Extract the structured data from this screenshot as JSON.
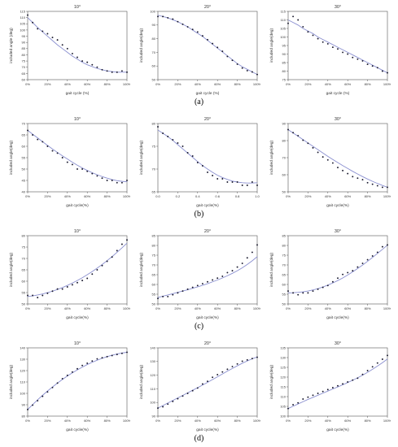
{
  "row_labels": [
    "(a)",
    "(b)",
    "(c)",
    "(d)"
  ],
  "colors": {
    "points": "#1a1a2e",
    "fit": "#8a8fd0",
    "axis": "#555555"
  },
  "chart_data": [
    {
      "type": "scatter",
      "title": "10°",
      "xlabel": "gait cycle  (%)",
      "ylabel": "included  angle  (deg)",
      "xticks": [
        "0%",
        "20%",
        "40%",
        "60%",
        "80%",
        "100%"
      ],
      "yticks": [
        "60",
        "65",
        "70",
        "75",
        "80",
        "85",
        "90",
        "95",
        "100",
        "105",
        "110",
        "115"
      ],
      "xlim": [
        0,
        100
      ],
      "ylim": [
        60,
        115
      ],
      "x": [
        0,
        5,
        10,
        15,
        20,
        25,
        30,
        35,
        40,
        45,
        50,
        55,
        60,
        65,
        70,
        75,
        80,
        85,
        90,
        95,
        100
      ],
      "values": [
        112,
        106,
        101,
        99,
        97,
        94,
        92,
        88,
        85,
        81,
        78,
        75,
        74,
        72,
        70,
        68,
        67,
        66,
        66,
        67,
        66
      ],
      "fit": [
        110,
        106,
        102,
        98.5,
        95,
        91.5,
        88,
        85,
        82,
        79,
        76.5,
        74,
        72,
        70.5,
        69,
        68,
        67,
        66.5,
        66,
        66,
        66
      ]
    },
    {
      "type": "scatter",
      "title": "20°",
      "xlabel": "gait cycle (%)",
      "ylabel": "included angle(deg)",
      "xticks": [
        "0%",
        "20%",
        "40%",
        "60%",
        "80%",
        "100%"
      ],
      "yticks": [
        "50",
        "60",
        "70",
        "80",
        "90",
        "100"
      ],
      "xlim": [
        0,
        100
      ],
      "ylim": [
        50,
        103
      ],
      "x": [
        0,
        5,
        10,
        15,
        20,
        25,
        30,
        35,
        40,
        45,
        50,
        55,
        60,
        65,
        70,
        75,
        80,
        85,
        90,
        95,
        100
      ],
      "values": [
        99,
        99,
        98,
        97,
        95,
        93,
        91,
        89,
        87,
        84,
        81,
        78,
        75,
        72,
        68,
        65,
        62,
        59,
        57,
        56,
        54
      ],
      "fit": [
        100,
        99,
        98,
        96.5,
        95,
        93,
        91,
        88.5,
        86,
        83.5,
        80.5,
        77.5,
        74.5,
        71.5,
        68.5,
        65.5,
        62.5,
        60,
        58,
        56,
        54
      ]
    },
    {
      "type": "scatter",
      "title": "30°",
      "xlabel": "gait cycle (%)",
      "ylabel": "included angle(deg)",
      "xticks": [
        "0%",
        "20%",
        "40%",
        "60%",
        "80%",
        "100%"
      ],
      "yticks": [
        "75",
        "80",
        "85",
        "90",
        "95",
        "100",
        "105",
        "110",
        "115"
      ],
      "xlim": [
        0,
        100
      ],
      "ylim": [
        75,
        115
      ],
      "x": [
        0,
        5,
        10,
        15,
        20,
        25,
        30,
        35,
        40,
        45,
        50,
        55,
        60,
        65,
        70,
        75,
        80,
        85,
        90,
        95,
        100
      ],
      "values": [
        108,
        112,
        110,
        106,
        103,
        101,
        99,
        97,
        96,
        94,
        93,
        91,
        90,
        88,
        87,
        86,
        84,
        83,
        82,
        80,
        79
      ],
      "fit": [
        110,
        108.5,
        107,
        105,
        103.5,
        102,
        100,
        98.5,
        97,
        95.5,
        94,
        92.5,
        91,
        89.5,
        88,
        86.5,
        85,
        83.5,
        82,
        80.5,
        79
      ]
    },
    {
      "type": "scatter",
      "title": "10°",
      "xlabel": "gait cycle(%)",
      "ylabel": "included angle(deg)",
      "xticks": [
        "0%",
        "20%",
        "40%",
        "60%",
        "80%",
        "100%"
      ],
      "yticks": [
        "40",
        "45",
        "50",
        "55",
        "60",
        "65",
        "70"
      ],
      "xlim": [
        0,
        100
      ],
      "ylim": [
        40,
        70
      ],
      "x": [
        0,
        5,
        10,
        15,
        20,
        25,
        30,
        35,
        40,
        45,
        50,
        55,
        60,
        65,
        70,
        75,
        80,
        85,
        90,
        95,
        100
      ],
      "values": [
        67,
        65,
        63,
        62,
        60,
        58,
        57,
        55,
        53,
        52,
        50,
        50,
        49,
        48,
        47,
        46,
        45,
        45,
        44,
        44,
        45
      ],
      "fit": [
        67,
        65.3,
        63.7,
        62,
        60.4,
        58.8,
        57.3,
        55.8,
        54.4,
        53,
        51.7,
        50.5,
        49.4,
        48.4,
        47.5,
        46.7,
        46,
        45.4,
        44.9,
        44.6,
        44.4
      ]
    },
    {
      "type": "scatter",
      "title": "20°",
      "xlabel": "gait cycle(%)",
      "ylabel": "included angle(deg)",
      "xticks": [
        "0.0",
        "0.2",
        "0.4",
        "0.6",
        "0.8",
        "1.0"
      ],
      "yticks": [
        "65",
        "70",
        "75",
        "80"
      ],
      "xlim": [
        0,
        1
      ],
      "ylim": [
        61,
        82
      ],
      "x": [
        0,
        0.05,
        0.1,
        0.15,
        0.2,
        0.25,
        0.3,
        0.35,
        0.4,
        0.45,
        0.5,
        0.55,
        0.6,
        0.65,
        0.7,
        0.75,
        0.8,
        0.85,
        0.9,
        0.95,
        1.0
      ],
      "values": [
        81,
        79,
        78,
        77,
        76,
        75,
        73,
        72,
        70,
        69,
        67,
        66,
        65,
        65,
        64,
        64,
        64,
        63,
        63,
        64,
        63
      ],
      "fit": [
        80,
        79,
        78,
        76.8,
        75.5,
        74.2,
        72.9,
        71.6,
        70.3,
        69.1,
        68,
        67,
        66.1,
        65.4,
        64.8,
        64.3,
        64,
        63.8,
        63.7,
        63.7,
        63.8
      ]
    },
    {
      "type": "scatter",
      "title": "30°",
      "xlabel": "gait cycle(%)",
      "ylabel": "included angle(deg)",
      "xticks": [
        "0%",
        "20%",
        "40%",
        "60%",
        "80%",
        "100%"
      ],
      "yticks": [
        "50",
        "60",
        "70",
        "80",
        "90"
      ],
      "xlim": [
        0,
        100
      ],
      "ylim": [
        47,
        92
      ],
      "x": [
        0,
        5,
        10,
        15,
        20,
        25,
        30,
        35,
        40,
        45,
        50,
        55,
        60,
        65,
        70,
        75,
        80,
        85,
        90,
        95,
        100
      ],
      "values": [
        88,
        86,
        84,
        81,
        79,
        76,
        73,
        70,
        68,
        66,
        63,
        61,
        59,
        57,
        56,
        55,
        53,
        52,
        51,
        50,
        50
      ],
      "fit": [
        88,
        85.8,
        83.6,
        81.4,
        79.2,
        77,
        74.8,
        72.6,
        70.4,
        68.3,
        66.3,
        64.3,
        62.4,
        60.5,
        58.7,
        57,
        55.4,
        53.9,
        52.5,
        51.2,
        50
      ]
    },
    {
      "type": "scatter",
      "title": "10°",
      "xlabel": "gait cycle(%)",
      "ylabel": "included angle(deg)",
      "xticks": [
        "0%",
        "20%",
        "40%",
        "60%",
        "80%",
        "100%"
      ],
      "yticks": [
        "50",
        "55",
        "60",
        "65",
        "70",
        "75",
        "80"
      ],
      "xlim": [
        0,
        100
      ],
      "ylim": [
        49,
        81
      ],
      "x": [
        0,
        5,
        10,
        15,
        20,
        25,
        30,
        35,
        40,
        45,
        50,
        55,
        60,
        65,
        70,
        75,
        80,
        85,
        90,
        95,
        100
      ],
      "values": [
        53,
        53,
        52,
        53,
        54,
        55,
        56,
        56,
        57,
        58,
        59,
        60,
        61,
        63,
        65,
        67,
        69,
        71,
        74,
        77,
        79
      ],
      "fit": [
        52.5,
        52.8,
        53.2,
        53.7,
        54.3,
        55,
        55.8,
        56.7,
        57.7,
        58.8,
        60,
        61.3,
        62.7,
        64.2,
        65.8,
        67.5,
        69.3,
        71.2,
        73.2,
        75.3,
        77.5
      ]
    },
    {
      "type": "scatter",
      "title": "20°",
      "xlabel": "gait cycle(%)",
      "ylabel": "included angle(deg)",
      "xticks": [
        "0%",
        "20%",
        "40%",
        "60%",
        "80%",
        "100%"
      ],
      "yticks": [
        "50",
        "55",
        "60",
        "65",
        "70",
        "75",
        "80",
        "85"
      ],
      "xlim": [
        0,
        100
      ],
      "ylim": [
        49,
        86
      ],
      "x": [
        0,
        5,
        10,
        15,
        20,
        25,
        30,
        35,
        40,
        45,
        50,
        55,
        60,
        65,
        70,
        75,
        80,
        85,
        90,
        95,
        100
      ],
      "values": [
        52,
        53,
        53,
        54,
        55,
        56,
        57,
        58,
        59,
        60,
        61,
        62,
        63,
        64,
        66,
        67,
        69,
        71,
        74,
        77,
        81
      ],
      "fit": [
        52.5,
        53.2,
        53.9,
        54.6,
        55.3,
        56,
        56.7,
        57.5,
        58.3,
        59.1,
        60,
        61,
        62,
        63.1,
        64.3,
        65.6,
        67,
        68.6,
        70.4,
        72.4,
        74.6
      ]
    },
    {
      "type": "scatter",
      "title": "30°",
      "xlabel": "gait cycle(%)",
      "ylabel": "included angle(deg)",
      "xticks": [
        "0%",
        "20%",
        "40%",
        "60%",
        "80%",
        "100%"
      ],
      "yticks": [
        "50",
        "55",
        "60",
        "65",
        "70",
        "75",
        "80",
        "85"
      ],
      "xlim": [
        0,
        100
      ],
      "ylim": [
        49,
        86
      ],
      "x": [
        0,
        5,
        10,
        15,
        20,
        25,
        30,
        35,
        40,
        45,
        50,
        55,
        60,
        65,
        70,
        75,
        80,
        85,
        90,
        95,
        100
      ],
      "values": [
        56,
        55,
        54,
        55,
        55,
        56,
        57,
        58,
        59,
        61,
        63,
        65,
        66,
        67,
        69,
        71,
        73,
        75,
        77,
        80,
        81
      ],
      "fit": [
        55,
        55.1,
        55.3,
        55.6,
        56,
        56.6,
        57.3,
        58.2,
        59.2,
        60.4,
        61.7,
        63.1,
        64.7,
        66.4,
        68.2,
        70.1,
        72.1,
        74.2,
        76.4,
        78.6,
        80.9
      ]
    },
    {
      "type": "scatter",
      "title": "10°",
      "xlabel": "gait cycle(%)",
      "ylabel": "included angle(deg)",
      "xticks": [
        "0%",
        "20%",
        "40%",
        "60%",
        "80%",
        "100%"
      ],
      "yticks": [
        "80",
        "90",
        "100",
        "110",
        "120",
        "130",
        "140"
      ],
      "xlim": [
        0,
        100
      ],
      "ylim": [
        80,
        142
      ],
      "x": [
        0,
        5,
        10,
        15,
        20,
        25,
        30,
        35,
        40,
        45,
        50,
        55,
        60,
        65,
        70,
        75,
        80,
        85,
        90,
        95,
        100
      ],
      "values": [
        86,
        90,
        94,
        98,
        102,
        106,
        110,
        114,
        117,
        120,
        123,
        126,
        128,
        130,
        132,
        133,
        134,
        135,
        136,
        137,
        138
      ],
      "fit": [
        86,
        90.5,
        94.8,
        98.9,
        102.8,
        106.5,
        110,
        113.3,
        116.4,
        119.3,
        122,
        124.5,
        126.8,
        128.9,
        130.8,
        132.5,
        134,
        135.3,
        136.4,
        137.3,
        138
      ]
    },
    {
      "type": "scatter",
      "title": "20°",
      "xlabel": "gait cycle(%)",
      "ylabel": "included angle(deg)",
      "xticks": [
        "0%",
        "20%",
        "40%",
        "60%",
        "80%",
        "100%"
      ],
      "yticks": [
        "90",
        "100",
        "110",
        "120",
        "130",
        "140"
      ],
      "xlim": [
        0,
        100
      ],
      "ylim": [
        90,
        141
      ],
      "x": [
        0,
        5,
        10,
        15,
        20,
        25,
        30,
        35,
        40,
        45,
        50,
        55,
        60,
        65,
        70,
        75,
        80,
        85,
        90,
        95,
        100
      ],
      "values": [
        96,
        97,
        99,
        101,
        103,
        105,
        107,
        109,
        111,
        114,
        116,
        119,
        121,
        123,
        125,
        127,
        129,
        131,
        132,
        133,
        134
      ],
      "fit": [
        96,
        97.9,
        99.8,
        101.7,
        103.6,
        105.5,
        107.4,
        109.3,
        111.2,
        113.2,
        115.2,
        117.3,
        119.4,
        121.5,
        123.6,
        125.6,
        127.6,
        129.5,
        131.2,
        132.8,
        134.2
      ]
    },
    {
      "type": "scatter",
      "title": "30°",
      "xlabel": "gait cycle(%)",
      "ylabel": "included angle(deg)",
      "xticks": [
        "0%",
        "20%",
        "40%",
        "60%",
        "80%",
        "100%"
      ],
      "yticks": [
        "100",
        "105",
        "110",
        "115",
        "120",
        "125",
        "130",
        "135"
      ],
      "xlim": [
        0,
        100
      ],
      "ylim": [
        99,
        135
      ],
      "x": [
        0,
        5,
        10,
        15,
        20,
        25,
        30,
        35,
        40,
        45,
        50,
        55,
        60,
        65,
        70,
        75,
        80,
        85,
        90,
        95,
        100
      ],
      "values": [
        103,
        105,
        106,
        108,
        109,
        110,
        111,
        112,
        113,
        114,
        115,
        116,
        117,
        118,
        119,
        121,
        123,
        125,
        127,
        129,
        131
      ],
      "fit": [
        103,
        104.2,
        105.4,
        106.6,
        107.8,
        108.9,
        110,
        111.1,
        112.2,
        113.3,
        114.4,
        115.5,
        116.7,
        117.9,
        119.2,
        120.6,
        122.1,
        123.7,
        125.4,
        127.2,
        129.1
      ]
    }
  ]
}
